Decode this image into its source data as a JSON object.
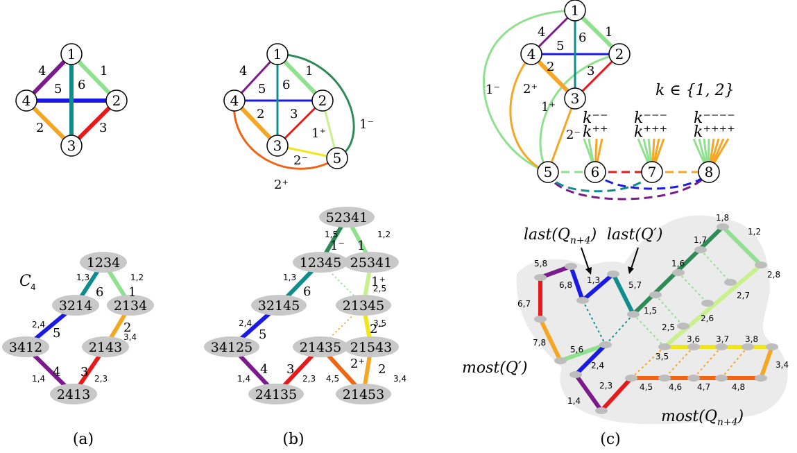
{
  "colors": {
    "purple": "#7a1a8c",
    "lightgreen": "#8fe08f",
    "blue": "#1a1ae6",
    "teal": "#0f8c8c",
    "orange": "#f5a623",
    "red": "#e61a1a",
    "darkgreen": "#2e8b57",
    "yellowgreen": "#c8f08c",
    "yellow": "#f0e61a",
    "darkorange": "#f06414",
    "node_fill": "#c8c8c8",
    "region_fill": "#ebebeb"
  },
  "panel_a": {
    "caption": "(a)",
    "nodes": [
      "1",
      "2",
      "3",
      "4"
    ],
    "edge_labels": [
      "4",
      "1",
      "5",
      "6",
      "2",
      "3"
    ],
    "cycle_label": "C",
    "cycle_sub": "4",
    "perms": [
      "1234",
      "3214",
      "2134",
      "3412",
      "2143",
      "2413"
    ],
    "perm_edge_labels": [
      "6",
      "1",
      "5",
      "2",
      "4",
      "3"
    ],
    "small_labels": [
      "1,3",
      "1,2",
      "2,4",
      "3,4",
      "1,4",
      "2,3"
    ]
  },
  "panel_b": {
    "caption": "(b)",
    "nodes": [
      "1",
      "2",
      "3",
      "4",
      "5"
    ],
    "edge_labels": [
      "4",
      "1",
      "5",
      "6",
      "2",
      "3",
      "1⁺",
      "1⁻",
      "2⁻",
      "2⁺"
    ],
    "perms": [
      "52341",
      "12345",
      "25341",
      "32145",
      "21345",
      "34125",
      "21435",
      "21543",
      "24135",
      "21453"
    ],
    "perm_edge_labels": [
      "1⁻",
      "1",
      "6",
      "1⁺",
      "5",
      "2⁻",
      "4",
      "3",
      "2⁺",
      "2"
    ],
    "small_labels": [
      "1,5",
      "1,2",
      "1,3",
      "2,5",
      "2,4",
      "3,5",
      "1,4",
      "2,3",
      "4,5",
      "3,4"
    ]
  },
  "panel_c": {
    "caption": "(c)",
    "nodes": [
      "1",
      "2",
      "3",
      "4",
      "5",
      "6",
      "7",
      "8"
    ],
    "edge_labels": [
      "4",
      "6",
      "1",
      "5",
      "2",
      "3",
      "1⁻",
      "2⁺",
      "1⁺",
      "2⁻"
    ],
    "k_set": "k ∈ {1, 2}",
    "k_labels_top": [
      "k⁻⁻",
      "k⁻⁻⁻",
      "k⁻⁻⁻⁻"
    ],
    "k_labels_bottom": [
      "k⁺⁺",
      "k⁺⁺⁺",
      "k⁺⁺⁺⁺"
    ],
    "annotation_last_q": "last(Q",
    "annotation_last_q_sub": "n+4",
    "annotation_last_qp": "last(Q′)",
    "annotation_most_qp": "most(Q′)",
    "annotation_most_q": "most(Q",
    "annotation_most_q_sub": "n+4",
    "close_paren": ")",
    "small_labels": [
      "1,8",
      "1,2",
      "1,7",
      "2,8",
      "5,8",
      "1,6",
      "6,8",
      "1,3",
      "5,7",
      "2,7",
      "6,7",
      "1,5",
      "2,5",
      "2,6",
      "3,6",
      "3,7",
      "3,8",
      "7,8",
      "5,6",
      "3,5",
      "2,4",
      "3,4",
      "2,3",
      "4,5",
      "4,6",
      "4,7",
      "4,8",
      "1,4"
    ]
  }
}
